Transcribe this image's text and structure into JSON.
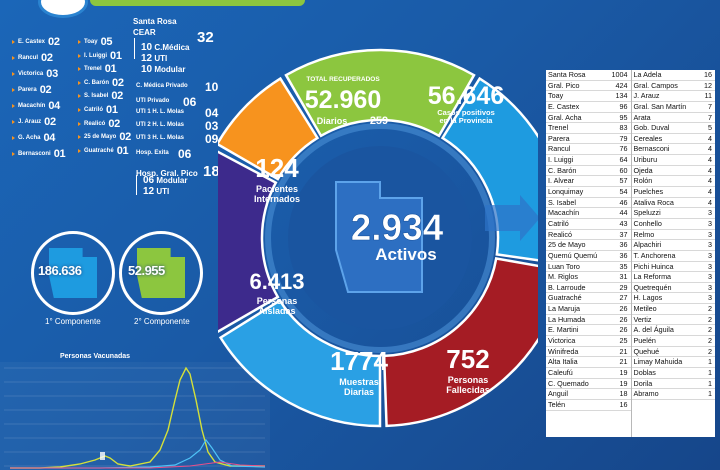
{
  "left_cases": [
    {
      "name": "E. Castex",
      "value": "02"
    },
    {
      "name": "Rancul",
      "value": "02"
    },
    {
      "name": "Victorica",
      "value": "03"
    },
    {
      "name": "Parera",
      "value": "02"
    },
    {
      "name": "Macachín",
      "value": "04"
    },
    {
      "name": "J. Arauz",
      "value": "02"
    },
    {
      "name": "G. Acha",
      "value": "04"
    },
    {
      "name": "Bernasconi",
      "value": "01"
    },
    {
      "name": "Toay",
      "value": "05"
    },
    {
      "name": "I. Luiggi",
      "value": "01"
    },
    {
      "name": "Trenel",
      "value": "01"
    },
    {
      "name": "C. Barón",
      "value": "02"
    },
    {
      "name": "S. Isabel",
      "value": "02"
    },
    {
      "name": "Catriló",
      "value": "01"
    },
    {
      "name": "Realicó",
      "value": "02"
    },
    {
      "name": "25 de Mayo",
      "value": "02"
    },
    {
      "name": "Guatraché",
      "value": "01"
    }
  ],
  "santa_rosa": {
    "title": "Santa Rosa",
    "cear_label": "CEAR",
    "cear_total": "32",
    "cear_items": [
      {
        "value": "10",
        "label": "C.Médica"
      },
      {
        "value": "12",
        "label": "UTI"
      },
      {
        "value": "10",
        "label": "Modular"
      }
    ],
    "hospitals": [
      {
        "label": "C. Médica Privado",
        "value": "10"
      },
      {
        "label": "UTI Privado",
        "value": "06"
      },
      {
        "label": "UTI 1 H. L. Molas",
        "value": "04"
      },
      {
        "label": "UTI 2 H. L. Molas",
        "value": "03"
      },
      {
        "label": "UTI 3 H. L. Molas",
        "value": "09"
      },
      {
        "label": "Hosp. Exita",
        "value": "06"
      }
    ],
    "pico": {
      "label": "Hosp. Gral. Pico",
      "value": "18",
      "items": [
        {
          "value": "06",
          "label": "Modular"
        },
        {
          "value": "12",
          "label": "UTI"
        }
      ]
    }
  },
  "components": [
    {
      "value": "186.636",
      "label": "1° Componente",
      "color": "#1e9be0"
    },
    {
      "value": "52.955",
      "label": "2° Componente",
      "color": "#8cc63f"
    }
  ],
  "chart": {
    "title": "Personas Vacunadas"
  },
  "segments": {
    "recuperados": {
      "title": "TOTAL RECUPERADOS",
      "value": "52.960",
      "sub_label": "Diarios",
      "sub_value": "259",
      "color": "#8cc63f"
    },
    "positivos": {
      "value": "56.646",
      "label": "Casos positivos",
      "label2": "en la Provincia",
      "color": "#1e9be0"
    },
    "internados": {
      "value": "124",
      "label": "Pacientes",
      "label2": "Internados",
      "color": "#f7931e"
    },
    "aisladas": {
      "value": "6.413",
      "label": "Personas",
      "label2": "Aisladas",
      "color": "#3d2a8c"
    },
    "muestras": {
      "value": "1774",
      "label": "Muestras",
      "label2": "Diarias",
      "color": "#2aa0e4"
    },
    "fallecidas": {
      "value": "752",
      "label": "Personas",
      "label2": "Fallecidas",
      "color": "#a51c24"
    },
    "activos": {
      "value": "2.934",
      "label": "Activos"
    }
  },
  "table_left": [
    [
      "Santa Rosa",
      "1004"
    ],
    [
      "Gral. Pico",
      "424"
    ],
    [
      "Toay",
      "134"
    ],
    [
      "E. Castex",
      "96"
    ],
    [
      "Gral. Acha",
      "95"
    ],
    [
      "Trenel",
      "83"
    ],
    [
      "Parera",
      "79"
    ],
    [
      "Rancul",
      "76"
    ],
    [
      "I. Luiggi",
      "64"
    ],
    [
      "C. Barón",
      "60"
    ],
    [
      "I. Alvear",
      "57"
    ],
    [
      "Lonquimay",
      "54"
    ],
    [
      "S. Isabel",
      "46"
    ],
    [
      "Macachín",
      "44"
    ],
    [
      "Catriló",
      "43"
    ],
    [
      "Realicó",
      "37"
    ],
    [
      "25 de Mayo",
      "36"
    ],
    [
      "Quemú Quemú",
      "36"
    ],
    [
      "Luan Toro",
      "35"
    ],
    [
      "M. Riglos",
      "31"
    ],
    [
      "B. Larroude",
      "29"
    ],
    [
      "Guatraché",
      "27"
    ],
    [
      "La Maruja",
      "26"
    ],
    [
      "La Humada",
      "26"
    ],
    [
      "E. Martini",
      "26"
    ],
    [
      "Victorica",
      "25"
    ],
    [
      "Winifreda",
      "21"
    ],
    [
      "Alta Italia",
      "21"
    ],
    [
      "Caleufú",
      "19"
    ],
    [
      "C. Quemado",
      "19"
    ],
    [
      "Anguil",
      "18"
    ],
    [
      "Telén",
      "16"
    ]
  ],
  "table_right": [
    [
      "La Adela",
      "16"
    ],
    [
      "Gral. Campos",
      "12"
    ],
    [
      "J. Arauz",
      "11"
    ],
    [
      "Gral. San Martín",
      "7"
    ],
    [
      "Arata",
      "7"
    ],
    [
      "Gob. Duval",
      "5"
    ],
    [
      "Cereales",
      "4"
    ],
    [
      "Bernasconi",
      "4"
    ],
    [
      "Uriburu",
      "4"
    ],
    [
      "Ojeda",
      "4"
    ],
    [
      "Rolón",
      "4"
    ],
    [
      "Puelches",
      "4"
    ],
    [
      "Ataliva Roca",
      "4"
    ],
    [
      "Speluzzi",
      "3"
    ],
    [
      "Conhello",
      "3"
    ],
    [
      "Relmo",
      "3"
    ],
    [
      "Alpachiri",
      "3"
    ],
    [
      "T. Anchorena",
      "3"
    ],
    [
      "Pichi Huinca",
      "3"
    ],
    [
      "La Reforma",
      "3"
    ],
    [
      "Quetrequén",
      "3"
    ],
    [
      "H. Lagos",
      "3"
    ],
    [
      "Metileo",
      "2"
    ],
    [
      "Vertiz",
      "2"
    ],
    [
      "A. del Águila",
      "2"
    ],
    [
      "Puelén",
      "2"
    ],
    [
      "Quehué",
      "2"
    ],
    [
      "Limay Mahuida",
      "1"
    ],
    [
      "Doblas",
      "1"
    ],
    [
      "Dorila",
      "1"
    ],
    [
      "Abramo",
      "1"
    ]
  ]
}
